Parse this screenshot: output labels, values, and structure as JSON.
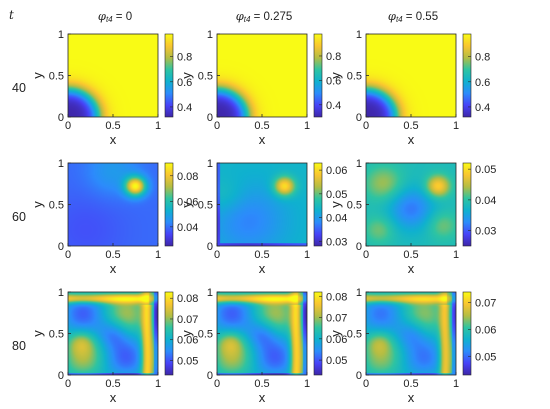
{
  "figure": {
    "t_label": "t",
    "columns": [
      {
        "phi_symbol": "φ",
        "phi_sub": "t4",
        "value_text": " = 0"
      },
      {
        "phi_symbol": "φ",
        "phi_sub": "t4",
        "value_text": " = 0.275"
      },
      {
        "phi_symbol": "φ",
        "phi_sub": "t4",
        "value_text": " = 0.55"
      }
    ],
    "rows": [
      "40",
      "60",
      "80"
    ],
    "colormap": [
      "#3e26a8",
      "#4743f8",
      "#2c8cfb",
      "#0fb1cf",
      "#2ec4a2",
      "#b4bd44",
      "#f9c630",
      "#f9fb15"
    ]
  },
  "chart_data": [
    {
      "type": "heatmap",
      "row": "40",
      "column": "φt4 = 0",
      "xlabel": "x",
      "ylabel": "y",
      "xlim": [
        0,
        1
      ],
      "ylim": [
        0,
        1
      ],
      "x_ticks": [
        "0",
        "0.5",
        "1"
      ],
      "y_ticks": [
        "0",
        "0.5",
        "1"
      ],
      "clim": [
        0.32,
        0.98
      ],
      "colorbar_ticks": [
        "0.4",
        "0.6",
        "0.8"
      ],
      "pattern": "low-corner"
    },
    {
      "type": "heatmap",
      "row": "40",
      "column": "φt4 = 0.275",
      "xlabel": "x",
      "ylabel": "y",
      "xlim": [
        0,
        1
      ],
      "ylim": [
        0,
        1
      ],
      "x_ticks": [
        "0",
        "0.5",
        "1"
      ],
      "y_ticks": [
        "0",
        "0.5",
        "1"
      ],
      "clim": [
        0.3,
        0.98
      ],
      "colorbar_ticks": [
        "0.4",
        "0.6",
        "0.8"
      ],
      "pattern": "low-corner"
    },
    {
      "type": "heatmap",
      "row": "40",
      "column": "φt4 = 0.55",
      "xlabel": "x",
      "ylabel": "y",
      "xlim": [
        0,
        1
      ],
      "ylim": [
        0,
        1
      ],
      "x_ticks": [
        "0",
        "0.5",
        "1"
      ],
      "y_ticks": [
        "0",
        "0.5",
        "1"
      ],
      "clim": [
        0.32,
        0.98
      ],
      "colorbar_ticks": [
        "0.4",
        "0.6",
        "0.8"
      ],
      "pattern": "low-corner"
    },
    {
      "type": "heatmap",
      "row": "60",
      "column": "φt4 = 0",
      "xlabel": "x",
      "ylabel": "y",
      "xlim": [
        0,
        1
      ],
      "ylim": [
        0,
        1
      ],
      "x_ticks": [
        "0",
        "0.5",
        "1"
      ],
      "y_ticks": [
        "0",
        "0.5",
        "1"
      ],
      "clim": [
        0.025,
        0.09
      ],
      "colorbar_ticks": [
        "0.04",
        "0.06",
        "0.08"
      ],
      "pattern": "hotspot"
    },
    {
      "type": "heatmap",
      "row": "60",
      "column": "φt4 = 0.275",
      "xlabel": "x",
      "ylabel": "y",
      "xlim": [
        0,
        1
      ],
      "ylim": [
        0,
        1
      ],
      "x_ticks": [
        "0",
        "0.5",
        "1"
      ],
      "y_ticks": [
        "0",
        "0.5",
        "1"
      ],
      "clim": [
        0.028,
        0.063
      ],
      "colorbar_ticks": [
        "0.03",
        "0.04",
        "0.05",
        "0.06"
      ],
      "pattern": "hotspot-mild"
    },
    {
      "type": "heatmap",
      "row": "60",
      "column": "φt4 = 0.55",
      "xlabel": "x",
      "ylabel": "y",
      "xlim": [
        0,
        1
      ],
      "ylim": [
        0,
        1
      ],
      "x_ticks": [
        "0",
        "0.5",
        "1"
      ],
      "y_ticks": [
        "0",
        "0.5",
        "1"
      ],
      "clim": [
        0.025,
        0.052
      ],
      "colorbar_ticks": [
        "0.03",
        "0.04",
        "0.05"
      ],
      "pattern": "hotspot-mixed"
    },
    {
      "type": "heatmap",
      "row": "80",
      "column": "φt4 = 0",
      "xlabel": "x",
      "ylabel": "y",
      "xlim": [
        0,
        1
      ],
      "ylim": [
        0,
        1
      ],
      "x_ticks": [
        "0",
        "0.5",
        "1"
      ],
      "y_ticks": [
        "0",
        "0.5",
        "1"
      ],
      "clim": [
        0.043,
        0.083
      ],
      "colorbar_ticks": [
        "0.05",
        "0.06",
        "0.07",
        "0.08"
      ],
      "pattern": "wave"
    },
    {
      "type": "heatmap",
      "row": "80",
      "column": "φt4 = 0.275",
      "xlabel": "x",
      "ylabel": "y",
      "xlim": [
        0,
        1
      ],
      "ylim": [
        0,
        1
      ],
      "x_ticks": [
        "0",
        "0.5",
        "1"
      ],
      "y_ticks": [
        "0",
        "0.5",
        "1"
      ],
      "clim": [
        0.043,
        0.082
      ],
      "colorbar_ticks": [
        "0.05",
        "0.06",
        "0.07",
        "0.08"
      ],
      "pattern": "wave"
    },
    {
      "type": "heatmap",
      "row": "80",
      "column": "φt4 = 0.55",
      "xlabel": "x",
      "ylabel": "y",
      "xlim": [
        0,
        1
      ],
      "ylim": [
        0,
        1
      ],
      "x_ticks": [
        "0",
        "0.5",
        "1"
      ],
      "y_ticks": [
        "0",
        "0.5",
        "1"
      ],
      "clim": [
        0.043,
        0.074
      ],
      "colorbar_ticks": [
        "0.05",
        "0.06",
        "0.07"
      ],
      "pattern": "wave-mild"
    }
  ]
}
